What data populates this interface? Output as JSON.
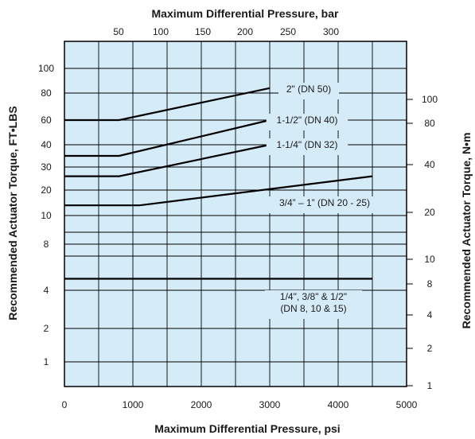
{
  "chart_data": {
    "type": "line",
    "title": "Maximum Differential Pressure, bar",
    "xlabel": "Maximum Differential Pressure, psi",
    "ylabel": "Recommended Actuator Torque, FT•LBS",
    "ylabel_right": "Recommended Actuator Torque, N•m",
    "xlim": [
      0,
      5000
    ],
    "x_ticks": [
      "0",
      "1000",
      "2000",
      "3000",
      "4000",
      "5000"
    ],
    "top_ticks": [
      "50",
      "100",
      "150",
      "200",
      "250",
      "300"
    ],
    "left_ticks": [
      "1",
      "2",
      "4",
      "8",
      "10",
      "20",
      "30",
      "40",
      "60",
      "80",
      "100"
    ],
    "right_ticks": [
      "1",
      "2",
      "4",
      "8",
      "10",
      "20",
      "40",
      "80",
      "100"
    ],
    "grid": true,
    "plot_background": "#d6ebf8",
    "series": [
      {
        "name": "2\" (DN 50)",
        "label_lines": [
          "2\" (DN 50)"
        ],
        "x": [
          0,
          800,
          3000
        ],
        "y": [
          60,
          60,
          84
        ]
      },
      {
        "name": "1-1/2\" (DN 40)",
        "label_lines": [
          "1-1/2\" (DN 40)"
        ],
        "x": [
          0,
          800,
          3000
        ],
        "y": [
          35,
          35,
          60
        ]
      },
      {
        "name": "1-1/4\" (DN 32)",
        "label_lines": [
          "1-1/4\" (DN 32)"
        ],
        "x": [
          0,
          800,
          3000
        ],
        "y": [
          26,
          26,
          40
        ]
      },
      {
        "name": "3/4\" – 1\" (DN 20 - 25)",
        "label_lines": [
          "3/4” – 1” (DN 20 - 25)"
        ],
        "x": [
          0,
          1100,
          4500
        ],
        "y": [
          14,
          14,
          26
        ]
      },
      {
        "name": "1/4\", 3/8\" & 1/2\" (DN 8, 10 & 15)",
        "label_lines": [
          "1/4\", 3/8\" & 1/2\"",
          "(DN 8, 10 & 15)"
        ],
        "x": [
          0,
          4500
        ],
        "y": [
          5,
          5
        ]
      }
    ]
  }
}
